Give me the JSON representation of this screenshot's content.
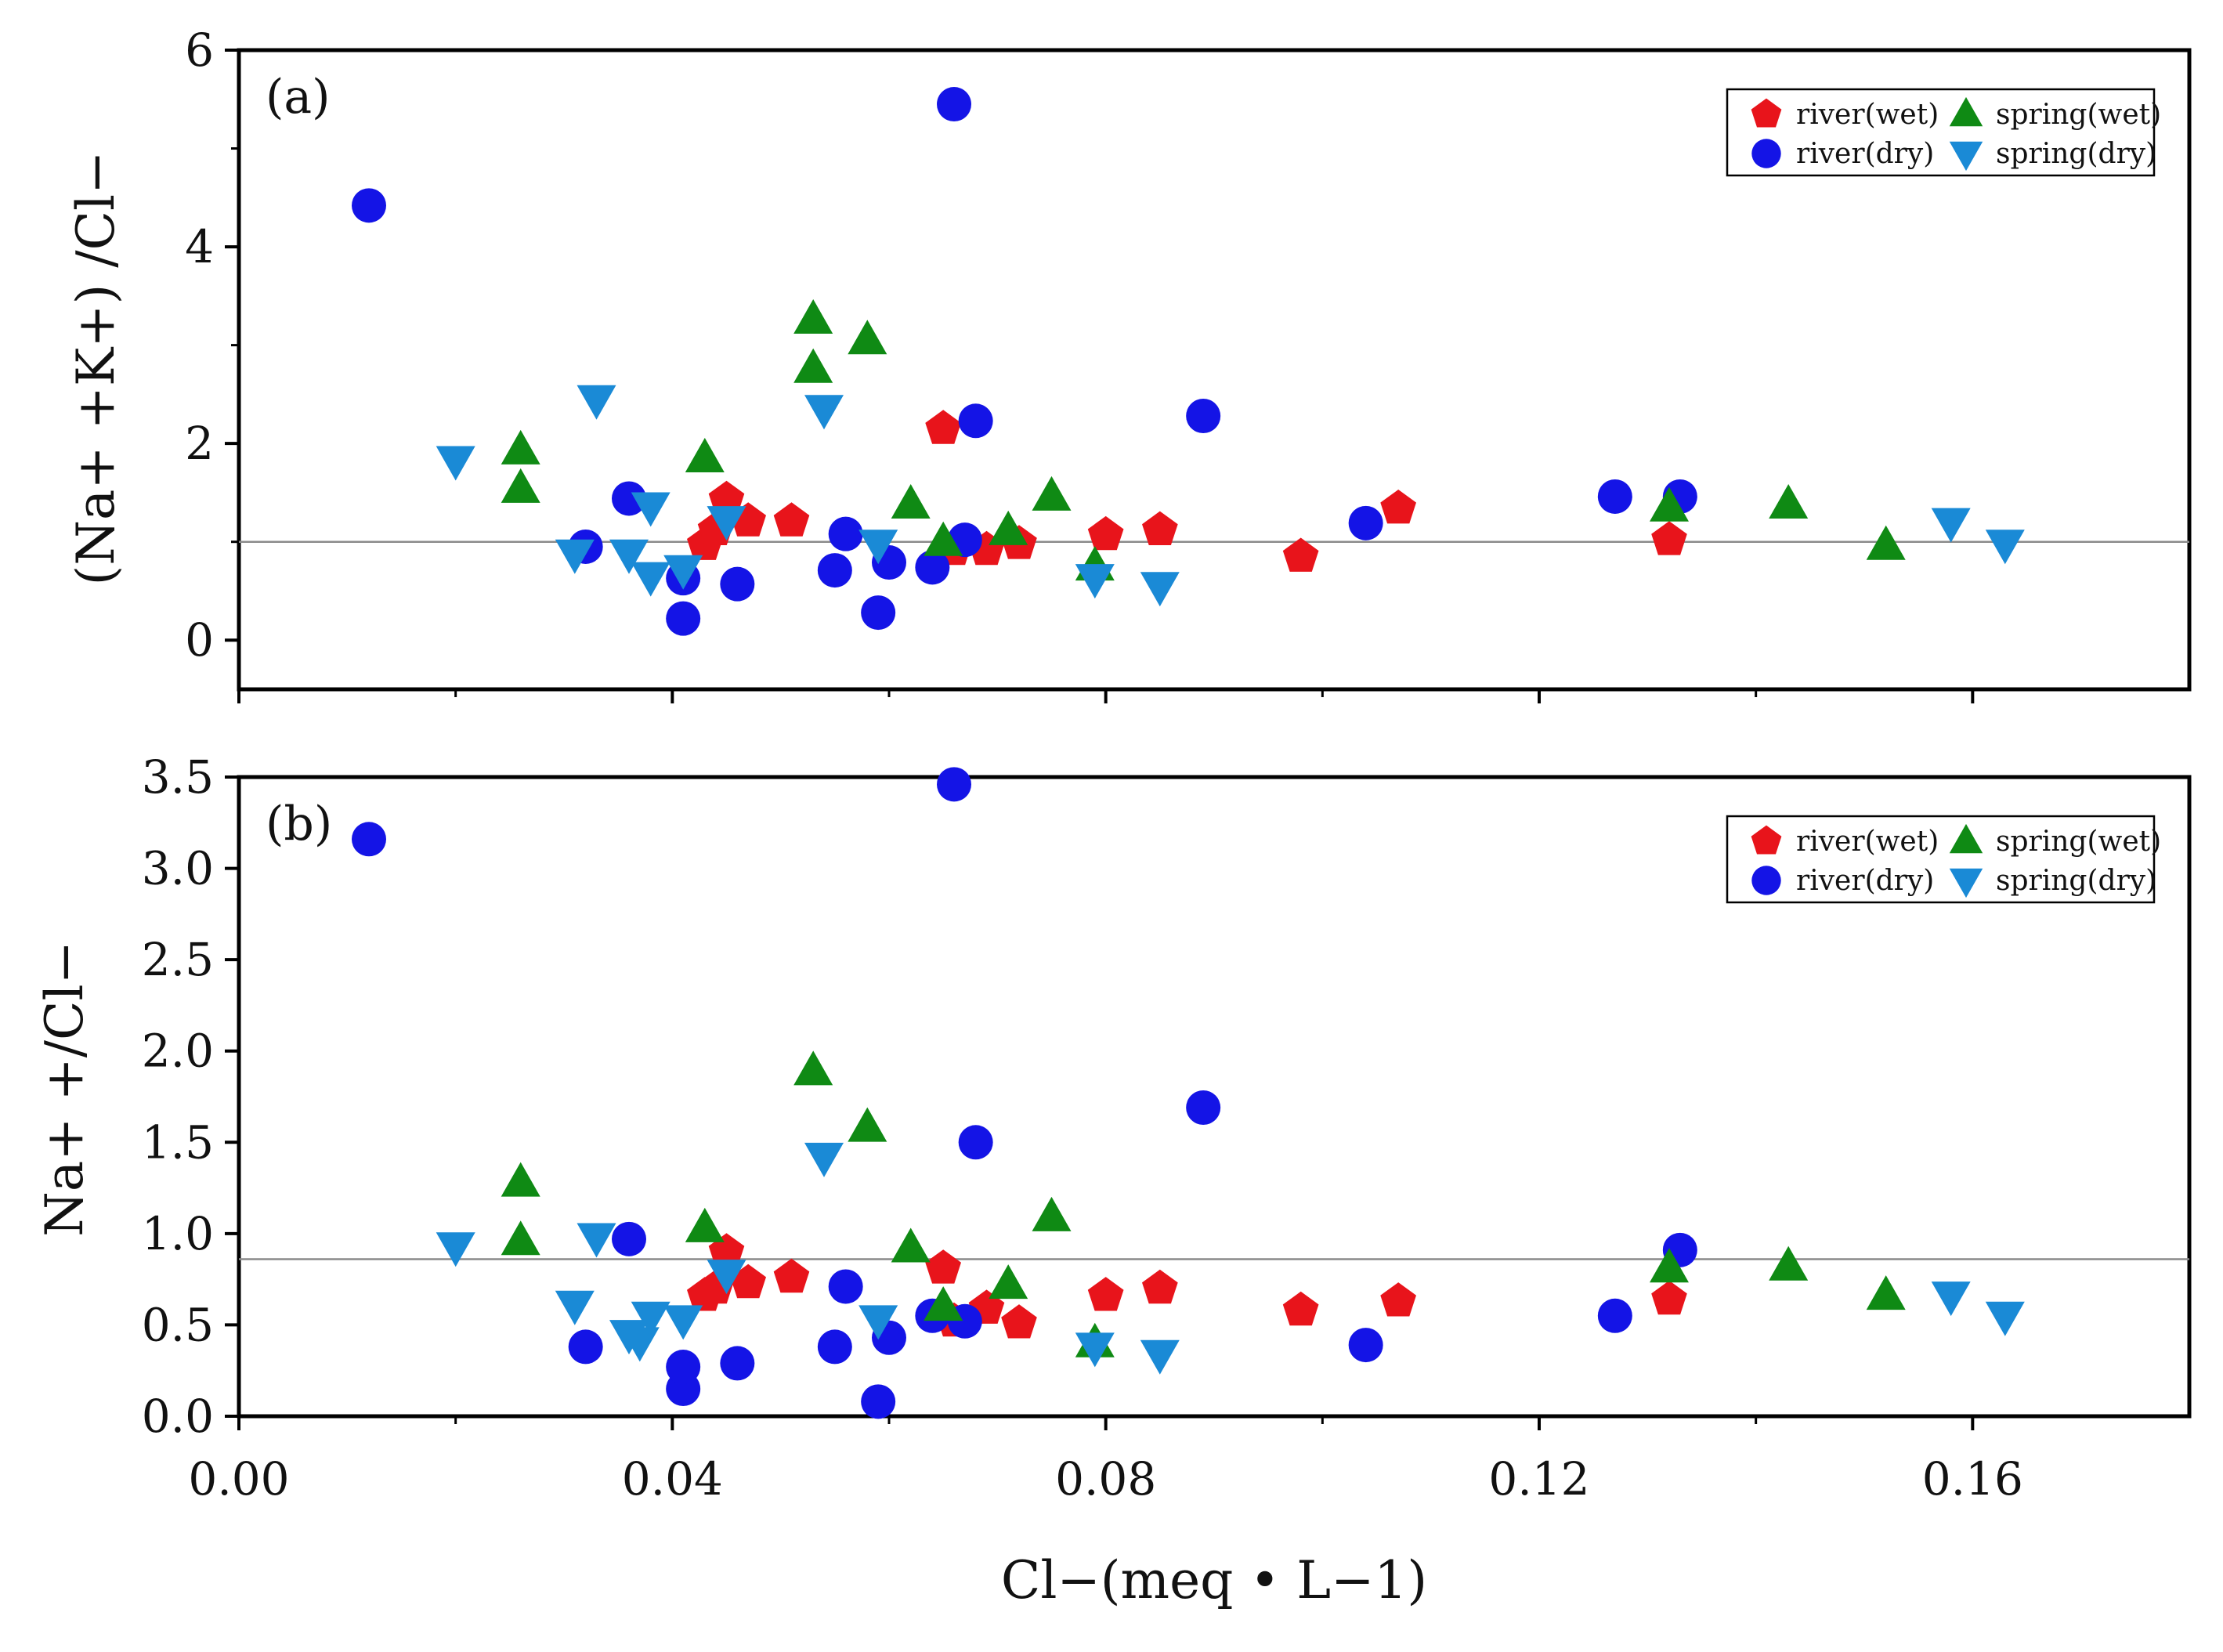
{
  "chart_data": [
    {
      "type": "scatter",
      "panel_label": "(a)",
      "ylabel": "(Na+ +K+) /Cl−",
      "xlabel": "Cl−(meq • L−1)",
      "xlim": [
        0,
        0.18
      ],
      "ylim": [
        -0.5,
        6
      ],
      "x_ticks": [
        0.0,
        0.04,
        0.08,
        0.12,
        0.16
      ],
      "x_tick_labels": [
        "0.00",
        "0.04",
        "0.08",
        "0.12",
        "0.16"
      ],
      "y_ticks": [
        0,
        2,
        4,
        6
      ],
      "y_tick_labels": [
        "0",
        "2",
        "4",
        "6"
      ],
      "reference_line": 1.0,
      "legend_position": "top-right",
      "series": [
        {
          "name": "river(wet)",
          "marker": "pentagon",
          "color": "#e8141b",
          "points": [
            [
              0.043,
              0.97
            ],
            [
              0.044,
              1.12
            ],
            [
              0.045,
              1.43
            ],
            [
              0.047,
              1.21
            ],
            [
              0.051,
              1.21
            ],
            [
              0.065,
              2.15
            ],
            [
              0.066,
              0.92
            ],
            [
              0.069,
              0.92
            ],
            [
              0.072,
              0.98
            ],
            [
              0.08,
              1.07
            ],
            [
              0.085,
              1.12
            ],
            [
              0.098,
              0.85
            ],
            [
              0.107,
              1.34
            ],
            [
              0.132,
              1.02
            ]
          ]
        },
        {
          "name": "river(dry)",
          "marker": "circle",
          "color": "#1414e6",
          "points": [
            [
              0.012,
              4.42
            ],
            [
              0.032,
              0.95
            ],
            [
              0.036,
              1.44
            ],
            [
              0.041,
              0.22
            ],
            [
              0.041,
              0.63
            ],
            [
              0.046,
              0.57
            ],
            [
              0.055,
              0.71
            ],
            [
              0.056,
              1.08
            ],
            [
              0.059,
              0.28
            ],
            [
              0.06,
              0.79
            ],
            [
              0.064,
              0.74
            ],
            [
              0.066,
              5.45
            ],
            [
              0.067,
              1.02
            ],
            [
              0.068,
              2.23
            ],
            [
              0.089,
              2.28
            ],
            [
              0.104,
              1.19
            ],
            [
              0.127,
              1.46
            ],
            [
              0.133,
              1.46
            ]
          ]
        },
        {
          "name": "spring(wet)",
          "marker": "triangle-up",
          "color": "#0f8a14",
          "points": [
            [
              0.026,
              1.93
            ],
            [
              0.026,
              1.54
            ],
            [
              0.043,
              1.85
            ],
            [
              0.053,
              3.26
            ],
            [
              0.053,
              2.76
            ],
            [
              0.058,
              3.05
            ],
            [
              0.062,
              1.38
            ],
            [
              0.065,
              1.0
            ],
            [
              0.071,
              1.11
            ],
            [
              0.075,
              1.46
            ],
            [
              0.079,
              0.75
            ],
            [
              0.132,
              1.35
            ],
            [
              0.143,
              1.38
            ],
            [
              0.152,
              0.96
            ]
          ]
        },
        {
          "name": "spring(dry)",
          "marker": "triangle-down",
          "color": "#1a8ad6",
          "points": [
            [
              0.02,
              1.83
            ],
            [
              0.031,
              0.88
            ],
            [
              0.033,
              2.45
            ],
            [
              0.036,
              0.88
            ],
            [
              0.038,
              0.65
            ],
            [
              0.038,
              1.36
            ],
            [
              0.041,
              0.72
            ],
            [
              0.045,
              1.22
            ],
            [
              0.054,
              2.35
            ],
            [
              0.059,
              0.98
            ],
            [
              0.079,
              0.63
            ],
            [
              0.085,
              0.55
            ],
            [
              0.158,
              1.2
            ],
            [
              0.163,
              0.98
            ]
          ]
        }
      ]
    },
    {
      "type": "scatter",
      "panel_label": "(b)",
      "ylabel": "Na+ +/Cl−",
      "xlabel": "Cl−(meq • L−1)",
      "xlim": [
        0,
        0.18
      ],
      "ylim": [
        0,
        3.5
      ],
      "x_ticks": [
        0.0,
        0.04,
        0.08,
        0.12,
        0.16
      ],
      "x_tick_labels": [
        "0.00",
        "0.04",
        "0.08",
        "0.12",
        "0.16"
      ],
      "y_ticks": [
        0,
        0.5,
        1.0,
        1.5,
        2.0,
        2.5,
        3.0,
        3.5
      ],
      "y_tick_labels": [
        "0.0",
        "0.5",
        "1.0",
        "1.5",
        "2.0",
        "2.5",
        "3.0",
        "3.5"
      ],
      "reference_line": 0.86,
      "legend_position": "top-right",
      "series": [
        {
          "name": "river(wet)",
          "marker": "pentagon",
          "color": "#e8141b",
          "points": [
            [
              0.043,
              0.66
            ],
            [
              0.044,
              0.7
            ],
            [
              0.045,
              0.9
            ],
            [
              0.047,
              0.73
            ],
            [
              0.051,
              0.76
            ],
            [
              0.065,
              0.81
            ],
            [
              0.066,
              0.52
            ],
            [
              0.069,
              0.59
            ],
            [
              0.072,
              0.51
            ],
            [
              0.08,
              0.66
            ],
            [
              0.085,
              0.7
            ],
            [
              0.098,
              0.58
            ],
            [
              0.107,
              0.63
            ],
            [
              0.132,
              0.64
            ]
          ]
        },
        {
          "name": "river(dry)",
          "marker": "circle",
          "color": "#1414e6",
          "points": [
            [
              0.012,
              3.16
            ],
            [
              0.032,
              0.38
            ],
            [
              0.036,
              0.97
            ],
            [
              0.041,
              0.15
            ],
            [
              0.041,
              0.27
            ],
            [
              0.046,
              0.29
            ],
            [
              0.055,
              0.38
            ],
            [
              0.056,
              0.71
            ],
            [
              0.059,
              0.08
            ],
            [
              0.06,
              0.43
            ],
            [
              0.064,
              0.55
            ],
            [
              0.066,
              3.46
            ],
            [
              0.067,
              0.52
            ],
            [
              0.068,
              1.5
            ],
            [
              0.089,
              1.69
            ],
            [
              0.104,
              0.39
            ],
            [
              0.127,
              0.55
            ],
            [
              0.133,
              0.91
            ]
          ]
        },
        {
          "name": "spring(wet)",
          "marker": "triangle-up",
          "color": "#0f8a14",
          "points": [
            [
              0.026,
              1.28
            ],
            [
              0.026,
              0.96
            ],
            [
              0.043,
              1.03
            ],
            [
              0.053,
              1.89
            ],
            [
              0.058,
              1.58
            ],
            [
              0.062,
              0.92
            ],
            [
              0.065,
              0.6
            ],
            [
              0.071,
              0.72
            ],
            [
              0.075,
              1.09
            ],
            [
              0.079,
              0.4
            ],
            [
              0.132,
              0.81
            ],
            [
              0.143,
              0.82
            ],
            [
              0.152,
              0.66
            ]
          ]
        },
        {
          "name": "spring(dry)",
          "marker": "triangle-down",
          "color": "#1a8ad6",
          "points": [
            [
              0.02,
              0.93
            ],
            [
              0.031,
              0.61
            ],
            [
              0.033,
              0.98
            ],
            [
              0.036,
              0.45
            ],
            [
              0.037,
              0.41
            ],
            [
              0.038,
              0.55
            ],
            [
              0.041,
              0.53
            ],
            [
              0.045,
              0.78
            ],
            [
              0.054,
              1.42
            ],
            [
              0.059,
              0.53
            ],
            [
              0.079,
              0.38
            ],
            [
              0.085,
              0.34
            ],
            [
              0.158,
              0.66
            ],
            [
              0.163,
              0.55
            ]
          ]
        }
      ]
    }
  ],
  "legend": {
    "items": [
      "river(wet)",
      "spring(wet)",
      "river(dry)",
      "spring(dry)"
    ]
  },
  "x_axis_title": "Cl−(meq • L−1)"
}
